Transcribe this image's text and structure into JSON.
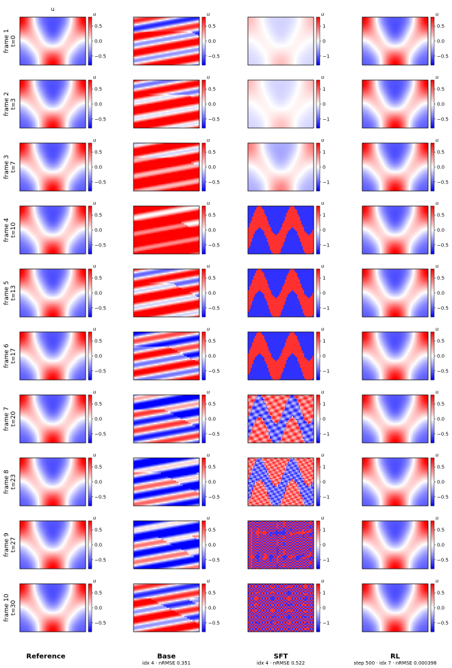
{
  "figure": {
    "top_label": "u",
    "columns": [
      {
        "title": "Reference",
        "subtitle": ""
      },
      {
        "title": "Base",
        "subtitle": "idx 4 · nRMSE 0.351"
      },
      {
        "title": "SFT",
        "subtitle": "idx 4 · nRMSE 0.522"
      },
      {
        "title": "RL",
        "subtitle": "step 500 · idx 7 · nRMSE 0.000398"
      }
    ],
    "rows": [
      {
        "frame": "frame 1",
        "t": "t=0"
      },
      {
        "frame": "frame 2",
        "t": "t=3"
      },
      {
        "frame": "frame 3",
        "t": "t=7"
      },
      {
        "frame": "frame 4",
        "t": "t=10"
      },
      {
        "frame": "frame 5",
        "t": "t=13"
      },
      {
        "frame": "frame 6",
        "t": "t=17"
      },
      {
        "frame": "frame 7",
        "t": "t=20"
      },
      {
        "frame": "frame 8",
        "t": "t=23"
      },
      {
        "frame": "frame 9",
        "t": "t=27"
      },
      {
        "frame": "frame 10",
        "t": "t=30"
      }
    ]
  },
  "chart_data": {
    "type": "heatmap",
    "colormap": [
      "#0000ff",
      "#ffffff",
      "#ff0000"
    ],
    "colorbar_label": "u",
    "colorbars": [
      {
        "column": "Reference",
        "range": [
          -0.8,
          0.8
        ],
        "ticks": [
          "0.5",
          "0.0",
          "−0.5"
        ],
        "tick_values": [
          0.5,
          0.0,
          -0.5
        ]
      },
      {
        "column": "Base",
        "range": [
          -0.8,
          0.8
        ],
        "ticks": [
          "0.5",
          "0.0",
          "−0.5"
        ],
        "tick_values": [
          0.5,
          0.0,
          -0.5
        ]
      },
      {
        "column": "SFT",
        "range": [
          -1.6,
          1.6
        ],
        "ticks": [
          "1",
          "0",
          "−1"
        ],
        "tick_values": [
          1,
          0,
          -1
        ]
      },
      {
        "column": "RL",
        "range": [
          -0.8,
          0.8
        ],
        "ticks": [
          "0.5",
          "0.0",
          "−0.5"
        ],
        "tick_values": [
          0.5,
          0.0,
          -0.5
        ]
      }
    ]
  }
}
